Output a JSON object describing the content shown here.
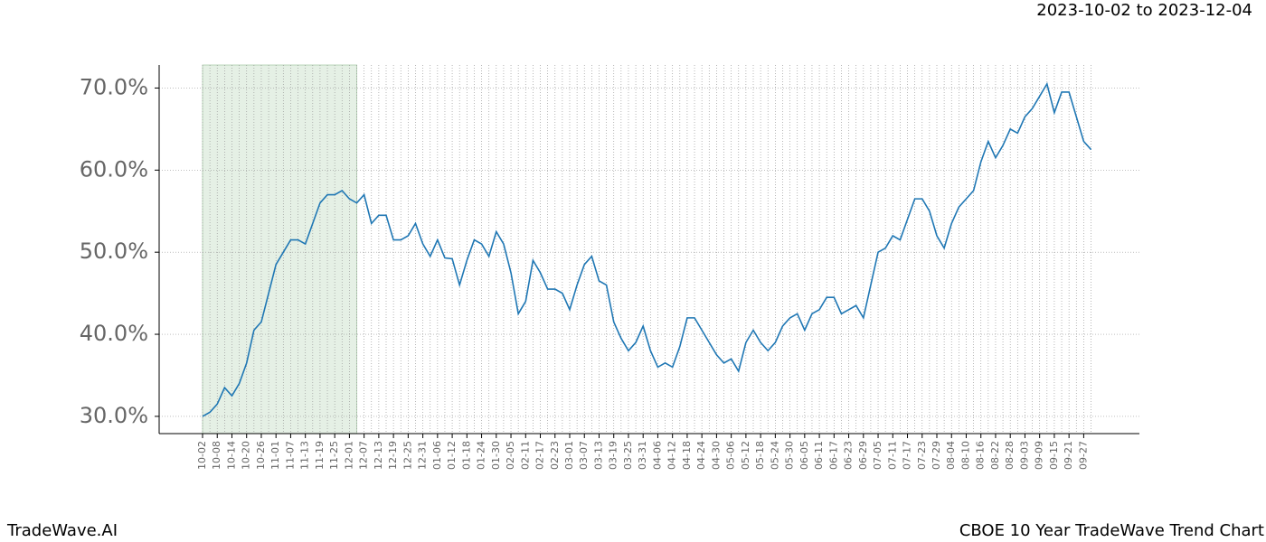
{
  "chart_data": {
    "type": "line",
    "title": "2023-10-02 to 2023-12-04",
    "footer_left": "TradeWave.AI",
    "footer_right": "CBOE 10 Year TradeWave Trend Chart",
    "categories": [
      "10-02",
      null,
      "10-08",
      null,
      "10-14",
      null,
      "10-20",
      null,
      "10-26",
      null,
      "11-01",
      null,
      "11-07",
      null,
      "11-13",
      null,
      "11-19",
      null,
      "11-25",
      null,
      "12-01",
      null,
      "12-07",
      null,
      "12-13",
      null,
      "12-19",
      null,
      "12-25",
      null,
      "12-31",
      null,
      "01-06",
      null,
      "01-12",
      null,
      "01-18",
      null,
      "01-24",
      null,
      "01-30",
      null,
      "02-05",
      null,
      "02-11",
      null,
      "02-17",
      null,
      "02-23",
      null,
      "03-01",
      null,
      "03-07",
      null,
      "03-13",
      null,
      "03-19",
      null,
      "03-25",
      null,
      "03-31",
      null,
      "04-06",
      null,
      "04-12",
      null,
      "04-18",
      null,
      "04-24",
      null,
      "04-30",
      null,
      "05-06",
      null,
      "05-12",
      null,
      "05-18",
      null,
      "05-24",
      null,
      "05-30",
      null,
      "06-05",
      null,
      "06-11",
      null,
      "06-17",
      null,
      "06-23",
      null,
      "06-29",
      null,
      "07-05",
      null,
      "07-11",
      null,
      "07-17",
      null,
      "07-23",
      null,
      "07-29",
      null,
      "08-04",
      null,
      "08-10",
      null,
      "08-16",
      null,
      "08-22",
      null,
      "08-28",
      null,
      "09-03",
      null,
      "09-09",
      null,
      "09-15",
      null,
      "09-21",
      null,
      "09-27",
      null
    ],
    "series": [
      {
        "color": "#1f77b4",
        "values": [
          30.0,
          30.5,
          31.5,
          33.5,
          32.5,
          34,
          36.5,
          40.5,
          41.5,
          45,
          48.5,
          50,
          51.5,
          51.5,
          51,
          53.5,
          56,
          57,
          57,
          57.5,
          56.5,
          56,
          57,
          53.5,
          54.5,
          54.5,
          51.5,
          51.5,
          52,
          53.5,
          51,
          49.5,
          51.5,
          49.3,
          49.2,
          46,
          49,
          51.5,
          51,
          49.5,
          52.5,
          51,
          47.5,
          42.5,
          44,
          49,
          47.5,
          45.5,
          45.5,
          45,
          43,
          46,
          48.5,
          49.5,
          46.5,
          46,
          41.5,
          39.5,
          38,
          39,
          41,
          38,
          36,
          36.5,
          36,
          38.5,
          42,
          42,
          40.5,
          39,
          37.5,
          36.5,
          37,
          35.5,
          39,
          40.5,
          39,
          38,
          39,
          41,
          42,
          42.5,
          40.5,
          42.5,
          43,
          44.5,
          44.5,
          42.5,
          43,
          43.5,
          42,
          46,
          50,
          50.5,
          52,
          51.5,
          54,
          56.5,
          56.5,
          55,
          52,
          50.5,
          53.5,
          55.5,
          56.5,
          57.5,
          61,
          63.5,
          61.5,
          63,
          65,
          64.5,
          66.5,
          67.5,
          69,
          70.5,
          67,
          69.5,
          69.5,
          66.5,
          63.5,
          62.5
        ]
      }
    ],
    "shade": {
      "from": 0,
      "to": 21,
      "color": "#e5f0e5"
    },
    "ylim": [
      27.9,
      72.8
    ],
    "yticks": [
      {
        "value": 30,
        "label": "30.0%"
      },
      {
        "value": 40,
        "label": "40.0%"
      },
      {
        "value": 50,
        "label": "50.0%"
      },
      {
        "value": 60,
        "label": "60.0%"
      },
      {
        "value": 70,
        "label": "70.0%"
      }
    ],
    "grid": true
  }
}
